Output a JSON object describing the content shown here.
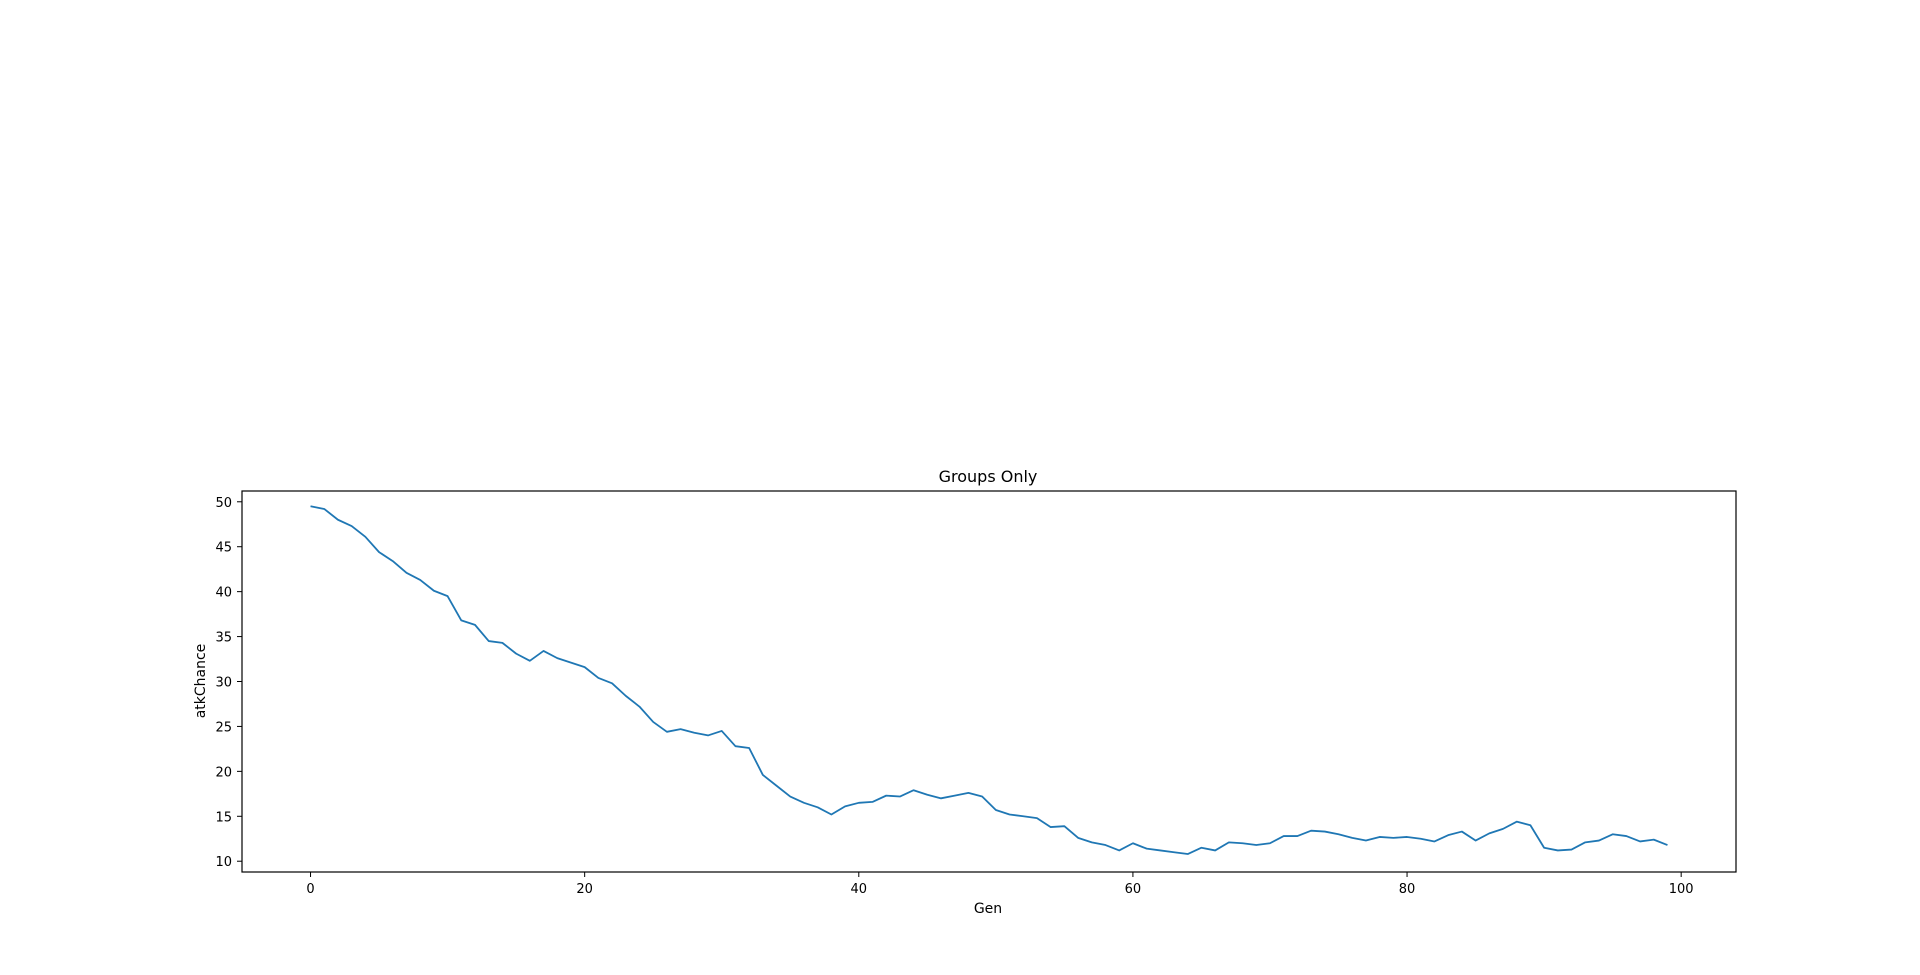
{
  "chart_data": {
    "type": "line",
    "title": "Groups Only",
    "xlabel": "Gen",
    "ylabel": "atkChance",
    "xlim": [
      -5,
      104
    ],
    "ylim": [
      8.8,
      51.2
    ],
    "xticks": [
      0,
      20,
      40,
      60,
      80,
      100
    ],
    "yticks": [
      10,
      15,
      20,
      25,
      30,
      35,
      40,
      45,
      50
    ],
    "grid": false,
    "legend": "none",
    "series": [
      {
        "color": "#1f77b4",
        "x": [
          0,
          1,
          2,
          3,
          4,
          5,
          6,
          7,
          8,
          9,
          10,
          11,
          12,
          13,
          14,
          15,
          16,
          17,
          18,
          19,
          20,
          21,
          22,
          23,
          24,
          25,
          26,
          27,
          28,
          29,
          30,
          31,
          32,
          33,
          34,
          35,
          36,
          37,
          38,
          39,
          40,
          41,
          42,
          43,
          44,
          45,
          46,
          47,
          48,
          49,
          50,
          51,
          52,
          53,
          54,
          55,
          56,
          57,
          58,
          59,
          60,
          61,
          62,
          63,
          64,
          65,
          66,
          67,
          68,
          69,
          70,
          71,
          72,
          73,
          74,
          75,
          76,
          77,
          78,
          79,
          80,
          81,
          82,
          83,
          84,
          85,
          86,
          87,
          88,
          89,
          90,
          91,
          92,
          93,
          94,
          95,
          96,
          97,
          98,
          99
        ],
        "y": [
          49.5,
          49.2,
          48.0,
          47.3,
          46.1,
          44.4,
          43.4,
          42.1,
          41.3,
          40.1,
          39.5,
          36.8,
          36.3,
          34.5,
          34.3,
          33.1,
          32.3,
          33.4,
          32.6,
          32.1,
          31.6,
          30.4,
          29.8,
          28.4,
          27.2,
          25.5,
          24.4,
          24.7,
          24.3,
          24.0,
          24.5,
          22.8,
          22.6,
          19.6,
          18.4,
          17.2,
          16.5,
          16.0,
          15.2,
          16.1,
          16.5,
          16.6,
          17.3,
          17.2,
          17.9,
          17.4,
          17.0,
          17.3,
          17.6,
          17.2,
          15.7,
          15.2,
          15.0,
          14.8,
          13.8,
          13.9,
          12.6,
          12.1,
          11.8,
          11.2,
          12.0,
          11.4,
          11.2,
          11.0,
          10.8,
          11.5,
          11.2,
          12.1,
          12.0,
          11.8,
          12.0,
          12.8,
          12.8,
          13.4,
          13.3,
          13.0,
          12.6,
          12.3,
          12.7,
          12.6,
          12.7,
          12.5,
          12.2,
          12.9,
          13.3,
          12.3,
          13.1,
          13.6,
          14.4,
          14.0,
          11.5,
          11.2,
          11.3,
          12.1,
          12.3,
          13.0,
          12.8,
          12.2,
          12.4,
          11.8
        ]
      }
    ]
  }
}
